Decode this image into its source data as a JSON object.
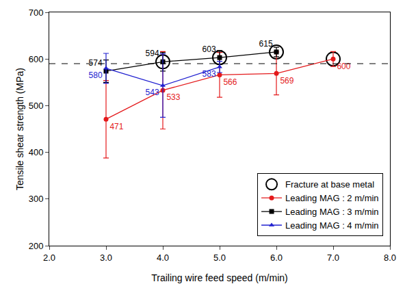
{
  "chart_data": {
    "type": "line",
    "x_label": "Trailing wire feed speed (m/min)",
    "y_label": "Tensile shear strength (MPa)",
    "xlim": [
      2,
      8
    ],
    "xticks": [
      {
        "value": 2,
        "label": "2.0"
      },
      {
        "value": 3,
        "label": "3.0"
      },
      {
        "value": 4,
        "label": "4.0"
      },
      {
        "value": 5,
        "label": "5.0"
      },
      {
        "value": 6,
        "label": "6.0"
      },
      {
        "value": 7,
        "label": "7.0"
      },
      {
        "value": 8,
        "label": "8.0"
      }
    ],
    "ylim": [
      200,
      700
    ],
    "yticks": [
      200,
      300,
      400,
      500,
      600,
      700
    ],
    "grid": false,
    "legend": "bottom right",
    "data_labels": true,
    "reference_line": {
      "value": 590,
      "line_style": "dash",
      "color": "#000000"
    },
    "series": [
      {
        "name": "Fracture at base metal",
        "type": "scatter",
        "marker": "circle-open",
        "color": "#000000",
        "data_labels": false,
        "x": [
          4,
          5,
          6,
          7
        ],
        "values": [
          594,
          603,
          615,
          600
        ]
      },
      {
        "name": "Leading MAG : 2 m/min",
        "marker": "circle",
        "color": "#e41a1c",
        "x": [
          3,
          4,
          5,
          6,
          7
        ],
        "values": [
          471,
          533,
          566,
          569,
          600
        ],
        "errors": [
          83,
          83,
          48,
          46,
          16
        ]
      },
      {
        "name": "Leading MAG : 3 m/min",
        "marker": "square",
        "color": "#000000",
        "x": [
          3,
          4,
          5,
          6
        ],
        "values": [
          574,
          594,
          603,
          615
        ],
        "errors": [
          24,
          20,
          15,
          10
        ]
      },
      {
        "name": "Leading MAG : 4 m/min",
        "marker": "triangle-up",
        "color": "#2020d0",
        "x": [
          3,
          4,
          5
        ],
        "values": [
          580,
          543,
          583
        ],
        "errors": [
          32,
          68,
          12
        ]
      }
    ]
  }
}
